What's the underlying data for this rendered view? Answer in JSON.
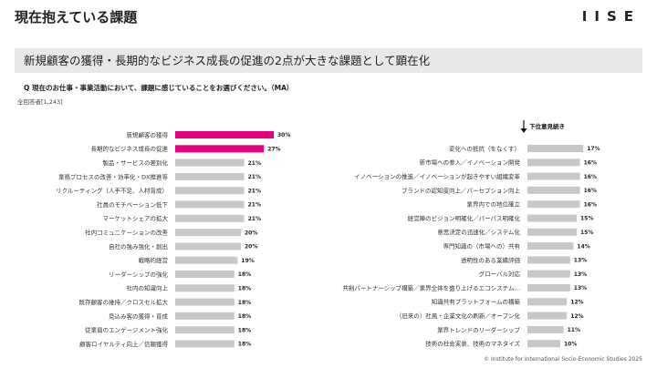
{
  "page": {
    "title": "現在抱えている課題",
    "logo": "IISE",
    "headline": "新規顧客の獲得・長期的なビジネス成長の促進の2点が大きな課題として顕在化",
    "question": "Q 現在のお仕事・事業活動において、課題に感じていることをお選びください。（MA）",
    "respondents": "全回答者[1,243]",
    "footer": "© Institute for International Socio-Economic Studies 2025"
  },
  "colors": {
    "highlight": "#e6007e",
    "bar": "#c8c8c8"
  },
  "chart_data": [
    {
      "type": "bar",
      "orientation": "horizontal",
      "categories": [
        "新規顧客の獲得",
        "長期的なビジネス成長の促進",
        "製品・サービスの差別化",
        "業務プロセスの改善・効率化・DX推進等",
        "リクルーティング（人手不足、人材育成）",
        "社員のモチベーション低下",
        "マーケットシェアの拡大",
        "社内コミュニケーションの改善",
        "自社の強み強化・創出",
        "戦略的経営",
        "リーダーシップの強化",
        "社内の知識向上",
        "既存顧客の維持／クロスセル拡大",
        "見込み客の獲得・育成",
        "従業員のエンゲージメント強化",
        "顧客ロイヤルティ向上／信頼獲得"
      ],
      "values": [
        30,
        27,
        21,
        21,
        21,
        21,
        21,
        20,
        20,
        19,
        18,
        18,
        18,
        18,
        18,
        18
      ],
      "value_labels": [
        "30%",
        "27%",
        "21%",
        "21%",
        "21%",
        "21%",
        "21%",
        "20%",
        "20%",
        "19%",
        "18%",
        "18%",
        "18%",
        "18%",
        "18%",
        "18%"
      ],
      "highlighted": [
        true,
        true,
        false,
        false,
        false,
        false,
        false,
        false,
        false,
        false,
        false,
        false,
        false,
        false,
        false,
        false
      ]
    },
    {
      "type": "bar",
      "orientation": "horizontal",
      "note": "下位意見続き",
      "categories": [
        "変化への抵抗（をなくす）",
        "新市場への参入／イノベーション開発",
        "イノベーションの推進／イノベーションが起きやすい組織変革",
        "ブランドの認知度向上／パーセプション向上",
        "業界内での地位確立",
        "経営陣のビジョン明確化／パーパス明確化",
        "意思決定の迅速化／システム化",
        "専門知識の（市場への）共有",
        "透明性のある業績評価",
        "グローバル対応",
        "共創パートナーシップ構築／業界全体を盛り上げるエコシステム…",
        "知識共有プラットフォームの構築",
        "（旧来の）社風・企業文化の刷新／オープン化",
        "業界トレンドのリーダーシップ",
        "技術の社会実装、技術のマネタイズ"
      ],
      "values": [
        17,
        16,
        16,
        16,
        16,
        15,
        15,
        14,
        13,
        13,
        13,
        12,
        12,
        11,
        10
      ],
      "value_labels": [
        "17%",
        "16%",
        "16%",
        "16%",
        "16%",
        "15%",
        "15%",
        "14%",
        "13%",
        "13%",
        "13%",
        "12%",
        "12%",
        "11%",
        "10%"
      ]
    }
  ]
}
